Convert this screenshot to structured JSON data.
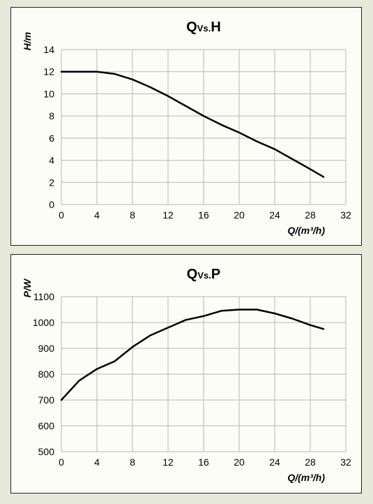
{
  "page_background": "#e7e9da",
  "panel_background": "#fdfdf7",
  "panel_border": "#222222",
  "grid_color": "#b8b8b0",
  "curve_color": "#000000",
  "tick_fontsize": 14,
  "title_fontsize": 20,
  "axis_label_fontsize": 14,
  "chart_top": {
    "title_prefix": "Q",
    "title_sub": "Vs.",
    "title_suffix": "H",
    "y_axis_label": "H/m",
    "x_axis_label": "Q/(m³/h)",
    "xlim": [
      0,
      32
    ],
    "ylim": [
      0,
      14
    ],
    "xticks": [
      0,
      4,
      8,
      12,
      16,
      20,
      24,
      28,
      32
    ],
    "yticks": [
      0,
      2,
      4,
      6,
      8,
      10,
      12,
      14
    ],
    "type": "line",
    "series": {
      "x": [
        0,
        2,
        4,
        6,
        8,
        10,
        12,
        14,
        16,
        18,
        20,
        22,
        24,
        26,
        28,
        29.5
      ],
      "y": [
        12.0,
        12.0,
        12.0,
        11.8,
        11.3,
        10.6,
        9.8,
        8.9,
        8.0,
        7.2,
        6.5,
        5.7,
        5.0,
        4.1,
        3.2,
        2.5
      ]
    }
  },
  "chart_bottom": {
    "title_prefix": "Q",
    "title_sub": "Vs.",
    "title_suffix": "P",
    "y_axis_label": "P/W",
    "x_axis_label": "Q/(m³/h)",
    "xlim": [
      0,
      32
    ],
    "ylim": [
      500,
      1100
    ],
    "xticks": [
      0,
      4,
      8,
      12,
      16,
      20,
      24,
      28,
      32
    ],
    "yticks": [
      500,
      600,
      700,
      800,
      900,
      1000,
      1100
    ],
    "type": "line",
    "series": {
      "x": [
        0,
        2,
        4,
        6,
        8,
        10,
        12,
        14,
        16,
        18,
        20,
        22,
        24,
        26,
        28,
        29.5
      ],
      "y": [
        700,
        775,
        820,
        850,
        905,
        950,
        980,
        1010,
        1025,
        1045,
        1050,
        1050,
        1035,
        1015,
        990,
        975
      ]
    }
  }
}
